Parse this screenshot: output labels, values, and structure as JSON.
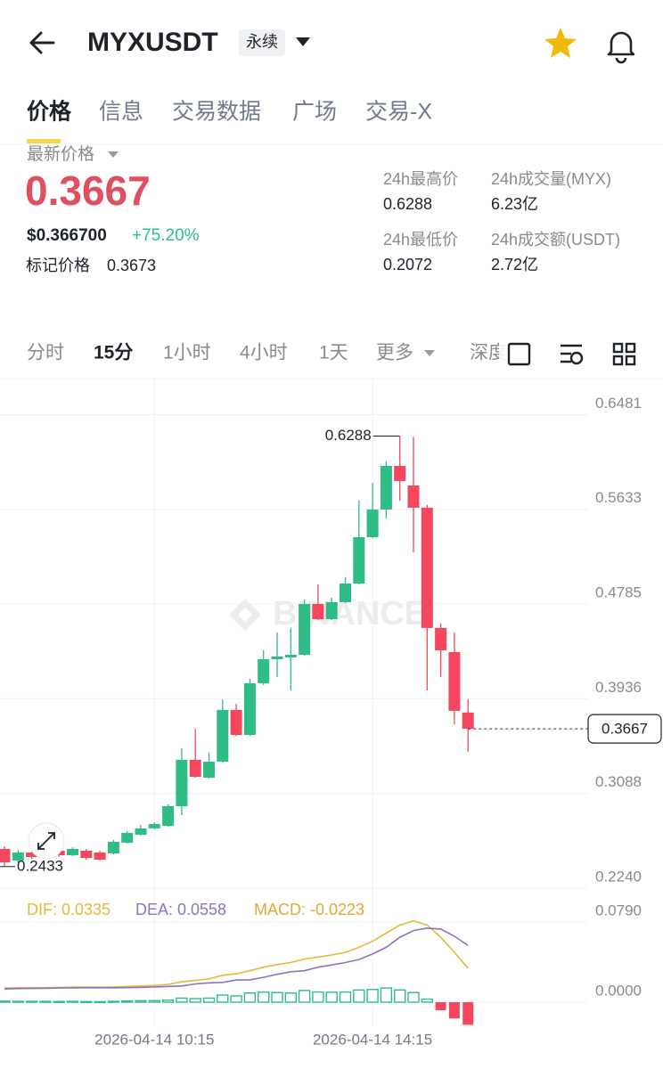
{
  "header": {
    "title": "MYXUSDT",
    "tag": "永续"
  },
  "tabs": [
    "价格",
    "信息",
    "交易数据",
    "广场",
    "交易-X"
  ],
  "ticker": {
    "last_price_label": "最新价格",
    "last_price": "0.3667",
    "usd_price": "$0.366700",
    "change": "+75.20%",
    "mark_price_label": "标记价格",
    "mark_price": "0.3673",
    "stats": [
      {
        "label": "24h最高价",
        "value": "0.6288"
      },
      {
        "label": "24h成交量(MYX)",
        "value": "6.23亿"
      },
      {
        "label": "24h最低价",
        "value": "0.2072"
      },
      {
        "label": "24h成交额(USDT)",
        "value": "2.72亿"
      }
    ]
  },
  "intervals": [
    "分时",
    "15分",
    "1小时",
    "4小时",
    "1天",
    "更多",
    "深度"
  ],
  "chart_data": [
    {
      "type": "candlestick",
      "watermark": "BINANCE",
      "categories": [
        null,
        null,
        null,
        null,
        null,
        null,
        null,
        null,
        null,
        null,
        null,
        "2026-04-14 10:15",
        null,
        null,
        null,
        null,
        null,
        null,
        null,
        null,
        null,
        null,
        null,
        null,
        null,
        null,
        null,
        "2026-04-14 14:15",
        null,
        null,
        null,
        null,
        null,
        null,
        null
      ],
      "open": [
        0.2591,
        0.2487,
        0.2559,
        0.2527,
        0.2575,
        0.2535,
        0.2575,
        0.2559,
        0.2551,
        0.2647,
        0.2719,
        0.2775,
        0.2798,
        0.2974,
        0.3389,
        0.3229,
        0.3373,
        0.3836,
        0.3612,
        0.4075,
        0.429,
        0.4306,
        0.433,
        0.4785,
        0.4649,
        0.4801,
        0.4968,
        0.5383,
        0.5631,
        0.6021,
        0.5846,
        0.5647,
        0.457,
        0.4354,
        0.3812
      ],
      "high": [
        0.2615,
        0.2583,
        0.2575,
        0.2599,
        0.2591,
        0.2607,
        0.2591,
        0.2575,
        0.2671,
        0.2751,
        0.2807,
        0.283,
        0.299,
        0.3492,
        0.3668,
        0.3453,
        0.3931,
        0.3891,
        0.4115,
        0.437,
        0.4529,
        0.4569,
        0.4825,
        0.496,
        0.4841,
        0.5024,
        0.5711,
        0.587,
        0.6061,
        0.6288,
        0.628,
        0.5671,
        0.461,
        0.453,
        0.3932
      ],
      "low": [
        0.2433,
        0.2471,
        0.2503,
        0.2511,
        0.2519,
        0.2527,
        0.2495,
        0.2487,
        0.2543,
        0.2639,
        0.2711,
        0.2767,
        0.279,
        0.2894,
        0.3229,
        0.3221,
        0.3365,
        0.3604,
        0.3604,
        0.4059,
        0.413,
        0.4011,
        0.4322,
        0.4641,
        0.4641,
        0.4793,
        0.496,
        0.5375,
        0.555,
        0.571,
        0.5247,
        0.4011,
        0.413,
        0.3708,
        0.3461
      ],
      "close": [
        0.2471,
        0.2559,
        0.2519,
        0.2583,
        0.2535,
        0.2591,
        0.2511,
        0.2495,
        0.2655,
        0.2735,
        0.2775,
        0.2814,
        0.2974,
        0.3389,
        0.3237,
        0.3373,
        0.3836,
        0.3612,
        0.4075,
        0.429,
        0.4314,
        0.433,
        0.4785,
        0.4649,
        0.4801,
        0.4968,
        0.5383,
        0.5631,
        0.6021,
        0.5886,
        0.5647,
        0.457,
        0.437,
        0.3828,
        0.3667
      ],
      "up_color": "#2ebd85",
      "down_color": "#f6465d",
      "ylim": [
        0.2216,
        0.6763
      ],
      "yticks": [
        0.6481,
        0.5633,
        0.4785,
        0.3936,
        0.3088,
        {
          "value": 0.224,
          "label": "0.2240"
        }
      ],
      "grid": true
    },
    {
      "type": "macd",
      "legend": [
        {
          "label": "DIF: 0.0335",
          "color": "#e6b93a"
        },
        {
          "label": "DEA: 0.0558",
          "color": "#8f72bf"
        },
        {
          "label": "MACD: -0.0223",
          "color": "#e6a63a"
        }
      ],
      "series": [
        {
          "color": "#e6b93a",
          "values": [
            0.014,
            0.0142,
            0.0143,
            0.0145,
            0.0146,
            0.0148,
            0.0148,
            0.0147,
            0.015,
            0.0155,
            0.016,
            0.0165,
            0.0175,
            0.02,
            0.0215,
            0.023,
            0.0265,
            0.028,
            0.031,
            0.0345,
            0.037,
            0.039,
            0.0425,
            0.0445,
            0.0465,
            0.049,
            0.054,
            0.06,
            0.068,
            0.076,
            0.08,
            0.076,
            0.064,
            0.049,
            0.0335
          ]
        },
        {
          "color": "#8f72bf",
          "values": [
            0.013,
            0.0134,
            0.0135,
            0.0137,
            0.0139,
            0.014,
            0.0142,
            0.0142,
            0.0142,
            0.0143,
            0.0146,
            0.015,
            0.0155,
            0.016,
            0.018,
            0.019,
            0.0195,
            0.0218,
            0.022,
            0.0245,
            0.0275,
            0.03,
            0.031,
            0.0345,
            0.0367,
            0.039,
            0.042,
            0.0475,
            0.054,
            0.064,
            0.0705,
            0.073,
            0.072,
            0.065,
            0.0558
          ]
        }
      ],
      "bars": {
        "up_color": "#2ebd85",
        "down_color": "#f6465d",
        "values": [
          0.001,
          0.0008,
          0.0008,
          0.0008,
          0.0007,
          0.0008,
          0.0006,
          0.0005,
          0.0008,
          0.0012,
          0.0014,
          0.0015,
          0.002,
          0.004,
          0.0035,
          0.004,
          0.007,
          0.0062,
          0.009,
          0.01,
          0.0095,
          0.009,
          0.0115,
          0.01,
          0.0098,
          0.01,
          0.012,
          0.0125,
          0.014,
          0.012,
          0.0095,
          0.003,
          -0.008,
          -0.016,
          -0.0223
        ]
      },
      "ylim": [
        -0.0237,
        0.1009
      ],
      "yticks": [
        {
          "value": 0.079,
          "label": "0.0790"
        },
        {
          "value": 0,
          "label": "0.0000"
        }
      ]
    }
  ]
}
